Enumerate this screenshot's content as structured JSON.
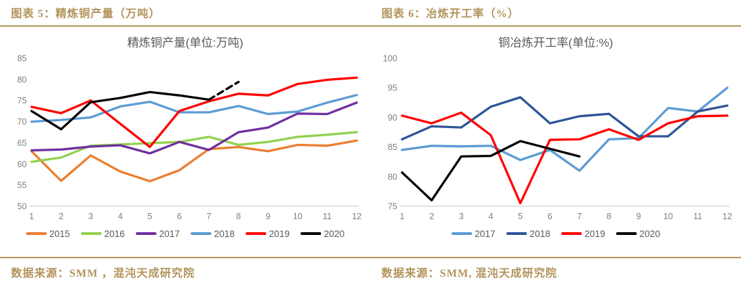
{
  "left": {
    "header": "图表 5：精炼铜产量（万吨）",
    "source": "数据来源：SMM ，混沌天成研究院"
  },
  "right": {
    "header": "图表 6：冶炼开工率（%）",
    "source": "数据来源：SMM, 混沌天成研究院"
  },
  "colors": {
    "accent_gold": "#B2945B",
    "title_gray": "#595959",
    "tick_gray": "#7F7F7F",
    "axis_line": "#D9D9D9"
  },
  "chart_data": [
    {
      "type": "line",
      "title": "精炼铜产量(单位:万吨)",
      "xlabel": "",
      "ylabel": "",
      "x": [
        1,
        2,
        3,
        4,
        5,
        6,
        7,
        8,
        9,
        10,
        11,
        12
      ],
      "ylim": [
        50,
        85
      ],
      "ytick_step": 5,
      "grid": false,
      "legend_position": "bottom",
      "series": [
        {
          "name": "2015",
          "color": "#ED7D31",
          "values": [
            63,
            56,
            62,
            58.2,
            55.9,
            58.5,
            63.5,
            64,
            63,
            64.5,
            64.3,
            65.5
          ]
        },
        {
          "name": "2016",
          "color": "#92D050",
          "values": [
            60.5,
            61.5,
            64.3,
            64.6,
            64.9,
            65.2,
            66.4,
            64.5,
            65.2,
            66.4,
            66.9,
            67.5
          ]
        },
        {
          "name": "2017",
          "color": "#7030A0",
          "values": [
            63.2,
            63.4,
            64.1,
            64.4,
            62.5,
            65.2,
            63.3,
            67.5,
            68.6,
            71.9,
            71.8,
            74.5
          ]
        },
        {
          "name": "2018",
          "color": "#5B9BD5",
          "values": [
            70,
            70.4,
            71,
            73.6,
            74.7,
            72.2,
            72.2,
            73.7,
            71.8,
            72.4,
            74.5,
            76.3
          ]
        },
        {
          "name": "2019",
          "color": "#FF0000",
          "values": [
            73.5,
            72,
            75,
            69.5,
            64,
            72.5,
            74.8,
            76.6,
            76.2,
            78.9,
            79.9,
            80.4
          ]
        },
        {
          "name": "2020",
          "color": "#000000",
          "values": [
            72.5,
            68.2,
            74.6,
            75.6,
            77,
            76.2,
            75.2,
            null,
            null,
            null,
            null,
            null
          ]
        },
        {
          "name": "2020-forecast",
          "color": "#000000",
          "dashed": true,
          "in_legend": false,
          "values": [
            null,
            null,
            null,
            null,
            null,
            null,
            75.2,
            79.4,
            null,
            null,
            null,
            null
          ]
        }
      ]
    },
    {
      "type": "line",
      "title": "铜冶炼开工率(单位:%)",
      "xlabel": "",
      "ylabel": "",
      "x": [
        1,
        2,
        3,
        4,
        5,
        6,
        7,
        8,
        9,
        10,
        11,
        12
      ],
      "ylim": [
        75,
        100
      ],
      "ytick_step": 5,
      "grid": false,
      "legend_position": "bottom",
      "series": [
        {
          "name": "2017",
          "color": "#5B9BD5",
          "values": [
            84.5,
            85.2,
            85.1,
            85.2,
            82.8,
            84.5,
            81,
            86.3,
            86.5,
            91.6,
            91,
            95
          ]
        },
        {
          "name": "2018",
          "color": "#2E5597",
          "values": [
            86.3,
            88.5,
            88.3,
            91.8,
            93.4,
            89,
            90.2,
            90.6,
            86.8,
            86.8,
            91,
            92
          ]
        },
        {
          "name": "2019",
          "color": "#FF0000",
          "values": [
            90.3,
            89,
            90.8,
            87,
            75.5,
            86.2,
            86.3,
            88,
            86.2,
            89,
            90.2,
            90.3
          ]
        },
        {
          "name": "2020",
          "color": "#000000",
          "values": [
            80.7,
            76,
            83.4,
            83.5,
            86,
            84.7,
            83.4,
            null,
            null,
            null,
            null,
            null
          ]
        }
      ]
    }
  ]
}
